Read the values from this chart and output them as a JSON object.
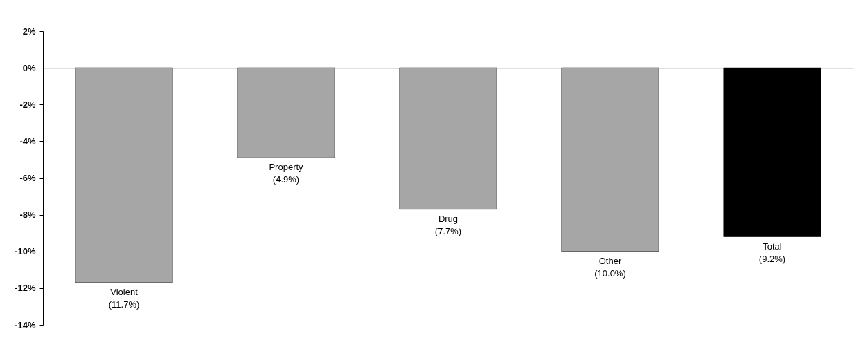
{
  "chart_data": {
    "type": "bar",
    "categories": [
      "Violent",
      "Property",
      "Drug",
      "Other",
      "Total"
    ],
    "values": [
      -11.7,
      -4.9,
      -7.7,
      -10.0,
      -9.2
    ],
    "colors": [
      "#a6a6a6",
      "#a6a6a6",
      "#a6a6a6",
      "#a6a6a6",
      "#000000"
    ],
    "value_labels": [
      "(11.7%)",
      "(4.9%)",
      "(7.7%)",
      "(10.0%)",
      "(9.2%)"
    ],
    "ylim": [
      -14,
      2
    ],
    "yticks": [
      {
        "value": 2,
        "label": "2%"
      },
      {
        "value": 0,
        "label": "0%"
      },
      {
        "value": -2,
        "label": "-2%"
      },
      {
        "value": -4,
        "label": "-4%"
      },
      {
        "value": -6,
        "label": "-6%"
      },
      {
        "value": -8,
        "label": "-8%"
      },
      {
        "value": -10,
        "label": "-10%"
      },
      {
        "value": -12,
        "label": "-12%"
      },
      {
        "value": -14,
        "label": "-14%"
      }
    ],
    "ylabel": null
  }
}
